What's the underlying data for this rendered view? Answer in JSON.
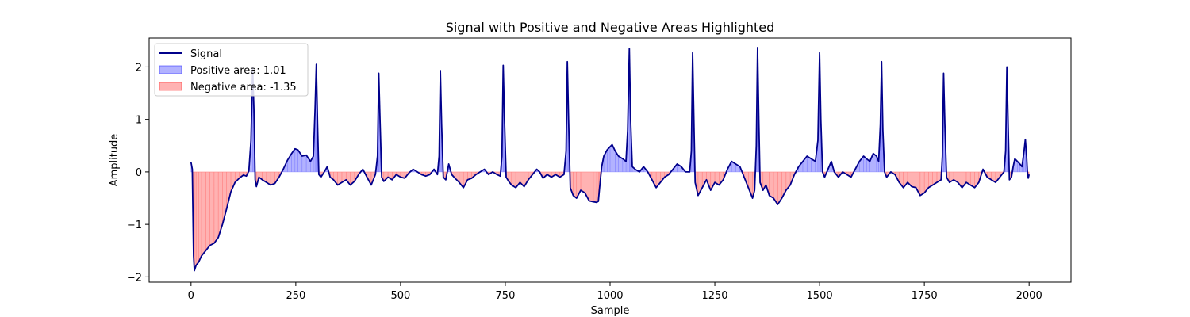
{
  "chart_data": {
    "type": "area",
    "title": "Signal with Positive and Negative Areas Highlighted",
    "xlabel": "Sample",
    "ylabel": "Amplitude",
    "xlim": [
      -100,
      2100
    ],
    "ylim": [
      -2.1,
      2.55
    ],
    "xticks": [
      0,
      250,
      500,
      750,
      1000,
      1250,
      1500,
      1750,
      2000
    ],
    "xtick_labels": [
      "0",
      "250",
      "500",
      "750",
      "1000",
      "1250",
      "1500",
      "1750",
      "2000"
    ],
    "yticks": [
      -2,
      -1,
      0,
      1,
      2
    ],
    "ytick_labels": [
      "−2",
      "−1",
      "0",
      "1",
      "2"
    ],
    "grid": false,
    "legend_position": "top-left",
    "legend": [
      {
        "label": "Signal",
        "kind": "line",
        "color": "#00008b"
      },
      {
        "label": "Positive area: 1.01",
        "kind": "patch",
        "color": "#0000ff"
      },
      {
        "label": "Negative area: -1.35",
        "kind": "patch",
        "color": "#ff0000"
      }
    ],
    "series": [
      {
        "name": "Signal",
        "color": "#00008b",
        "points": [
          [
            0,
            0.18
          ],
          [
            3,
            0.05
          ],
          [
            6,
            -1.6
          ],
          [
            8,
            -1.88
          ],
          [
            12,
            -1.78
          ],
          [
            18,
            -1.72
          ],
          [
            25,
            -1.6
          ],
          [
            35,
            -1.5
          ],
          [
            45,
            -1.4
          ],
          [
            55,
            -1.36
          ],
          [
            65,
            -1.25
          ],
          [
            75,
            -1.0
          ],
          [
            85,
            -0.7
          ],
          [
            95,
            -0.38
          ],
          [
            105,
            -0.2
          ],
          [
            115,
            -0.12
          ],
          [
            125,
            -0.06
          ],
          [
            132,
            -0.08
          ],
          [
            138,
            0.02
          ],
          [
            143,
            0.6
          ],
          [
            147,
            1.98
          ],
          [
            150,
            1.2
          ],
          [
            153,
            -0.15
          ],
          [
            156,
            -0.28
          ],
          [
            162,
            -0.1
          ],
          [
            170,
            -0.15
          ],
          [
            180,
            -0.2
          ],
          [
            190,
            -0.25
          ],
          [
            200,
            -0.22
          ],
          [
            210,
            -0.1
          ],
          [
            220,
            0.05
          ],
          [
            230,
            0.22
          ],
          [
            240,
            0.35
          ],
          [
            248,
            0.44
          ],
          [
            255,
            0.42
          ],
          [
            265,
            0.3
          ],
          [
            275,
            0.32
          ],
          [
            285,
            0.2
          ],
          [
            292,
            0.3
          ],
          [
            296,
            1.2
          ],
          [
            299,
            2.05
          ],
          [
            302,
            0.9
          ],
          [
            305,
            -0.05
          ],
          [
            310,
            -0.1
          ],
          [
            318,
            0.0
          ],
          [
            325,
            0.1
          ],
          [
            332,
            -0.1
          ],
          [
            340,
            -0.15
          ],
          [
            350,
            -0.25
          ],
          [
            360,
            -0.2
          ],
          [
            370,
            -0.15
          ],
          [
            380,
            -0.25
          ],
          [
            390,
            -0.18
          ],
          [
            400,
            -0.05
          ],
          [
            410,
            0.05
          ],
          [
            420,
            -0.1
          ],
          [
            430,
            -0.25
          ],
          [
            440,
            -0.05
          ],
          [
            445,
            0.3
          ],
          [
            448,
            1.88
          ],
          [
            451,
            1.0
          ],
          [
            455,
            -0.1
          ],
          [
            460,
            -0.18
          ],
          [
            470,
            -0.1
          ],
          [
            480,
            -0.15
          ],
          [
            490,
            -0.05
          ],
          [
            500,
            -0.1
          ],
          [
            510,
            -0.12
          ],
          [
            520,
            -0.02
          ],
          [
            530,
            0.05
          ],
          [
            540,
            0.0
          ],
          [
            550,
            -0.05
          ],
          [
            560,
            -0.08
          ],
          [
            570,
            -0.05
          ],
          [
            580,
            0.05
          ],
          [
            588,
            -0.05
          ],
          [
            592,
            0.3
          ],
          [
            595,
            1.93
          ],
          [
            598,
            0.9
          ],
          [
            602,
            -0.1
          ],
          [
            608,
            -0.15
          ],
          [
            615,
            0.15
          ],
          [
            622,
            -0.05
          ],
          [
            630,
            -0.12
          ],
          [
            640,
            -0.2
          ],
          [
            650,
            -0.3
          ],
          [
            660,
            -0.15
          ],
          [
            670,
            -0.12
          ],
          [
            680,
            -0.05
          ],
          [
            690,
            0.0
          ],
          [
            700,
            0.05
          ],
          [
            710,
            -0.05
          ],
          [
            720,
            0.0
          ],
          [
            730,
            -0.05
          ],
          [
            738,
            -0.08
          ],
          [
            742,
            0.3
          ],
          [
            745,
            2.03
          ],
          [
            748,
            1.0
          ],
          [
            752,
            -0.1
          ],
          [
            758,
            -0.18
          ],
          [
            765,
            -0.25
          ],
          [
            775,
            -0.3
          ],
          [
            785,
            -0.2
          ],
          [
            795,
            -0.28
          ],
          [
            805,
            -0.15
          ],
          [
            815,
            -0.05
          ],
          [
            825,
            0.05
          ],
          [
            832,
            0.0
          ],
          [
            840,
            -0.12
          ],
          [
            850,
            -0.05
          ],
          [
            860,
            -0.1
          ],
          [
            870,
            -0.05
          ],
          [
            880,
            -0.1
          ],
          [
            890,
            -0.05
          ],
          [
            895,
            0.4
          ],
          [
            898,
            2.1
          ],
          [
            901,
            1.0
          ],
          [
            905,
            -0.3
          ],
          [
            912,
            -0.45
          ],
          [
            920,
            -0.5
          ],
          [
            930,
            -0.35
          ],
          [
            940,
            -0.4
          ],
          [
            950,
            -0.55
          ],
          [
            960,
            -0.57
          ],
          [
            968,
            -0.58
          ],
          [
            972,
            -0.56
          ],
          [
            975,
            -0.3
          ],
          [
            980,
            0.1
          ],
          [
            985,
            0.3
          ],
          [
            993,
            0.42
          ],
          [
            1000,
            0.48
          ],
          [
            1005,
            0.52
          ],
          [
            1012,
            0.4
          ],
          [
            1020,
            0.3
          ],
          [
            1030,
            0.25
          ],
          [
            1038,
            0.2
          ],
          [
            1042,
            0.8
          ],
          [
            1046,
            2.35
          ],
          [
            1049,
            1.0
          ],
          [
            1053,
            0.1
          ],
          [
            1060,
            0.05
          ],
          [
            1070,
            0.0
          ],
          [
            1080,
            0.1
          ],
          [
            1090,
            0.0
          ],
          [
            1100,
            -0.15
          ],
          [
            1110,
            -0.3
          ],
          [
            1120,
            -0.2
          ],
          [
            1130,
            -0.1
          ],
          [
            1140,
            -0.05
          ],
          [
            1150,
            0.05
          ],
          [
            1160,
            0.15
          ],
          [
            1170,
            0.1
          ],
          [
            1180,
            0.0
          ],
          [
            1190,
            0.0
          ],
          [
            1194,
            0.4
          ],
          [
            1197,
            2.27
          ],
          [
            1200,
            1.0
          ],
          [
            1203,
            -0.2
          ],
          [
            1210,
            -0.45
          ],
          [
            1220,
            -0.3
          ],
          [
            1230,
            -0.15
          ],
          [
            1240,
            -0.35
          ],
          [
            1250,
            -0.2
          ],
          [
            1260,
            -0.25
          ],
          [
            1270,
            -0.15
          ],
          [
            1280,
            0.05
          ],
          [
            1290,
            0.2
          ],
          [
            1300,
            0.15
          ],
          [
            1310,
            0.1
          ],
          [
            1320,
            -0.1
          ],
          [
            1330,
            -0.3
          ],
          [
            1340,
            -0.5
          ],
          [
            1345,
            -0.35
          ],
          [
            1349,
            0.5
          ],
          [
            1352,
            2.37
          ],
          [
            1355,
            1.0
          ],
          [
            1358,
            -0.2
          ],
          [
            1365,
            -0.35
          ],
          [
            1372,
            -0.25
          ],
          [
            1380,
            -0.45
          ],
          [
            1390,
            -0.5
          ],
          [
            1400,
            -0.62
          ],
          [
            1410,
            -0.5
          ],
          [
            1420,
            -0.35
          ],
          [
            1430,
            -0.25
          ],
          [
            1440,
            -0.05
          ],
          [
            1450,
            0.1
          ],
          [
            1460,
            0.2
          ],
          [
            1470,
            0.3
          ],
          [
            1480,
            0.25
          ],
          [
            1490,
            0.2
          ],
          [
            1496,
            0.6
          ],
          [
            1500,
            2.27
          ],
          [
            1503,
            1.0
          ],
          [
            1507,
            0.0
          ],
          [
            1512,
            -0.1
          ],
          [
            1520,
            0.05
          ],
          [
            1528,
            0.2
          ],
          [
            1535,
            0.0
          ],
          [
            1545,
            -0.1
          ],
          [
            1555,
            0.0
          ],
          [
            1565,
            -0.05
          ],
          [
            1575,
            -0.1
          ],
          [
            1585,
            0.05
          ],
          [
            1595,
            0.2
          ],
          [
            1605,
            0.3
          ],
          [
            1612,
            0.25
          ],
          [
            1620,
            0.2
          ],
          [
            1628,
            0.35
          ],
          [
            1636,
            0.3
          ],
          [
            1641,
            0.2
          ],
          [
            1645,
            0.9
          ],
          [
            1648,
            2.1
          ],
          [
            1651,
            0.8
          ],
          [
            1655,
            0.0
          ],
          [
            1660,
            -0.1
          ],
          [
            1670,
            0.0
          ],
          [
            1680,
            -0.05
          ],
          [
            1690,
            -0.2
          ],
          [
            1700,
            -0.3
          ],
          [
            1710,
            -0.2
          ],
          [
            1720,
            -0.28
          ],
          [
            1730,
            -0.3
          ],
          [
            1740,
            -0.45
          ],
          [
            1750,
            -0.4
          ],
          [
            1760,
            -0.3
          ],
          [
            1770,
            -0.25
          ],
          [
            1780,
            -0.2
          ],
          [
            1790,
            -0.15
          ],
          [
            1793,
            0.3
          ],
          [
            1796,
            1.88
          ],
          [
            1799,
            0.9
          ],
          [
            1803,
            -0.1
          ],
          [
            1810,
            -0.2
          ],
          [
            1820,
            -0.15
          ],
          [
            1830,
            -0.2
          ],
          [
            1840,
            -0.3
          ],
          [
            1850,
            -0.2
          ],
          [
            1860,
            -0.25
          ],
          [
            1870,
            -0.3
          ],
          [
            1880,
            -0.2
          ],
          [
            1890,
            0.05
          ],
          [
            1900,
            -0.1
          ],
          [
            1910,
            -0.15
          ],
          [
            1920,
            -0.2
          ],
          [
            1930,
            -0.1
          ],
          [
            1940,
            0.0
          ],
          [
            1944,
            0.4
          ],
          [
            1947,
            2.0
          ],
          [
            1950,
            0.9
          ],
          [
            1953,
            -0.15
          ],
          [
            1958,
            -0.1
          ],
          [
            1962,
            0.1
          ],
          [
            1966,
            0.25
          ],
          [
            1972,
            0.2
          ],
          [
            1978,
            0.15
          ],
          [
            1983,
            0.1
          ],
          [
            1988,
            0.4
          ],
          [
            1991,
            0.62
          ],
          [
            1994,
            0.3
          ],
          [
            1996,
            0.0
          ],
          [
            1998,
            -0.12
          ],
          [
            2000,
            -0.05
          ]
        ]
      }
    ]
  }
}
